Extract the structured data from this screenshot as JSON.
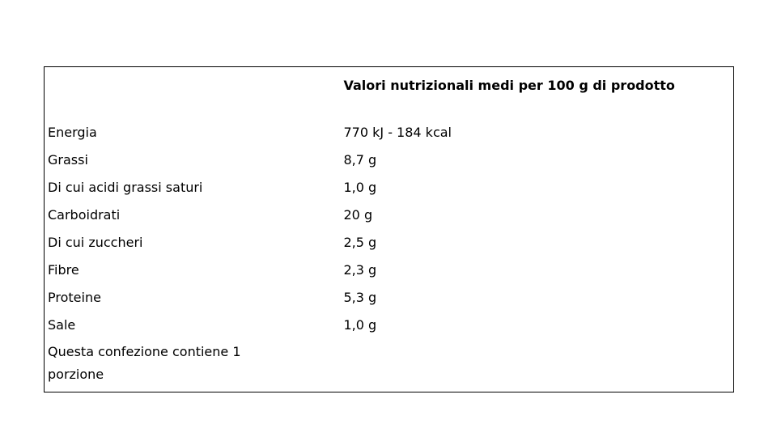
{
  "table": {
    "header": [
      "",
      "Valori nutrizionali medi per 100 g di prodotto"
    ],
    "rows": [
      [
        "Energia",
        "770 kJ - 184 kcal"
      ],
      [
        "Grassi",
        "8,7 g"
      ],
      [
        "Di cui acidi grassi saturi",
        "1,0 g"
      ],
      [
        "Carboidrati",
        "20 g"
      ],
      [
        "Di cui zuccheri",
        "2,5 g"
      ],
      [
        "Fibre",
        "2,3 g"
      ],
      [
        "Proteine",
        "5,3 g"
      ],
      [
        "Sale",
        "1,0 g"
      ],
      [
        "Questa confezione contiene 1 porzione",
        ""
      ]
    ]
  }
}
